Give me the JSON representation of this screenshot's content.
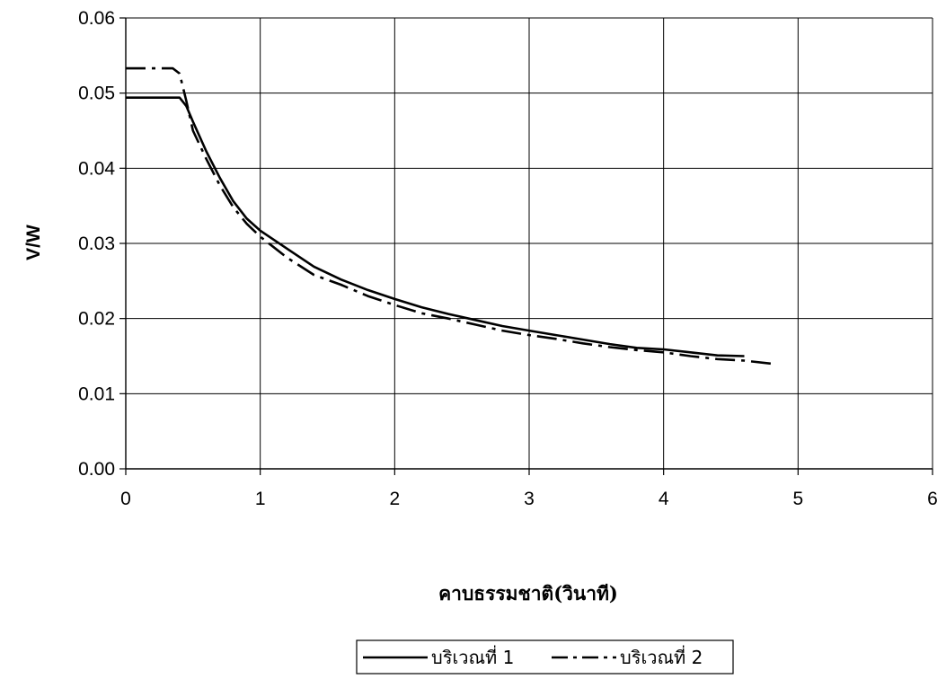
{
  "chart_data": {
    "type": "line",
    "xlabel": "คาบธรรมชาติ(วินาที)",
    "ylabel": "V/W",
    "xlim": [
      0,
      6
    ],
    "ylim": [
      0,
      0.06
    ],
    "x_ticks": [
      "0",
      "1",
      "2",
      "3",
      "4",
      "5",
      "6"
    ],
    "y_ticks": [
      "0.00",
      "0.01",
      "0.02",
      "0.03",
      "0.04",
      "0.05",
      "0.06"
    ],
    "grid": true,
    "legend_position": "bottom",
    "series": [
      {
        "name": "บริเวณที่ 1",
        "style": "solid",
        "color": "#000000",
        "x": [
          0,
          0.35,
          0.4,
          0.45,
          0.5,
          0.6,
          0.7,
          0.8,
          0.9,
          1.0,
          1.2,
          1.4,
          1.6,
          1.8,
          2.0,
          2.2,
          2.4,
          2.6,
          2.8,
          3.0,
          3.2,
          3.4,
          3.6,
          3.8,
          4.0,
          4.2,
          4.4,
          4.6
        ],
        "y": [
          0.0494,
          0.0494,
          0.0494,
          0.0483,
          0.0462,
          0.0422,
          0.0387,
          0.0356,
          0.0333,
          0.0317,
          0.0293,
          0.0269,
          0.0252,
          0.0238,
          0.0226,
          0.0215,
          0.0206,
          0.0198,
          0.019,
          0.0184,
          0.0178,
          0.0172,
          0.0166,
          0.0161,
          0.0159,
          0.0155,
          0.0151,
          0.015
        ]
      },
      {
        "name": "บริเวณที่ 2",
        "style": "dash-dot",
        "color": "#000000",
        "x": [
          0,
          0.3,
          0.35,
          0.4,
          0.45,
          0.5,
          0.6,
          0.7,
          0.8,
          0.9,
          1.0,
          1.2,
          1.4,
          1.6,
          1.8,
          2.0,
          2.2,
          2.4,
          2.6,
          2.8,
          3.0,
          3.2,
          3.4,
          3.6,
          3.8,
          4.0,
          4.2,
          4.4,
          4.6,
          4.8
        ],
        "y": [
          0.0533,
          0.0533,
          0.0533,
          0.0526,
          0.049,
          0.045,
          0.0412,
          0.0377,
          0.0348,
          0.0326,
          0.0309,
          0.0281,
          0.0258,
          0.0245,
          0.023,
          0.0218,
          0.0207,
          0.02,
          0.0192,
          0.0184,
          0.0178,
          0.0173,
          0.0167,
          0.0162,
          0.0158,
          0.0155,
          0.015,
          0.0146,
          0.0144,
          0.014
        ]
      }
    ]
  }
}
